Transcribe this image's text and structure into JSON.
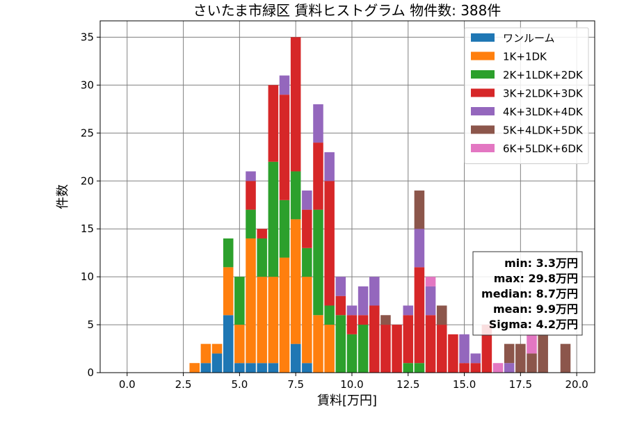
{
  "chart_data": {
    "type": "bar",
    "stacked": true,
    "title": "さいたま市緑区 賃料ヒストグラム  物件数: 388件",
    "xlabel": "賃料[万円]",
    "ylabel": "件数",
    "xlim": [
      -1.2,
      20.8
    ],
    "ylim": [
      0,
      36.7
    ],
    "bin_width": 0.5,
    "grid": true,
    "legend_position": "top-right",
    "x_ticks": [
      "0.0",
      "2.5",
      "5.0",
      "7.5",
      "10.0",
      "12.5",
      "15.0",
      "17.5",
      "20.0"
    ],
    "y_ticks": [
      "0",
      "5",
      "10",
      "15",
      "20",
      "25",
      "30",
      "35"
    ],
    "bins_x": [
      3.0,
      3.5,
      4.0,
      4.5,
      5.0,
      5.5,
      6.0,
      6.5,
      7.0,
      7.5,
      8.0,
      8.5,
      9.0,
      9.5,
      10.0,
      10.5,
      11.0,
      11.5,
      12.0,
      12.5,
      13.0,
      13.5,
      14.0,
      14.5,
      15.0,
      15.5,
      16.0,
      16.5,
      17.0,
      17.5,
      18.0,
      18.5,
      19.0,
      19.5
    ],
    "series": [
      {
        "name": "ワンルーム",
        "color": "#1f77b4",
        "values": [
          0,
          1,
          2,
          6,
          1,
          1,
          1,
          1,
          0,
          3,
          1,
          0,
          0,
          0,
          0,
          0,
          0,
          0,
          0,
          0,
          0,
          0,
          0,
          0,
          0,
          0,
          0,
          0,
          0,
          0,
          0,
          0,
          0,
          0
        ]
      },
      {
        "name": "1K+1DK",
        "color": "#ff7f0e",
        "values": [
          1,
          2,
          1,
          5,
          4,
          13,
          9,
          9,
          12,
          13,
          9,
          6,
          5,
          0,
          0,
          0,
          0,
          0,
          0,
          0,
          0,
          0,
          0,
          0,
          0,
          0,
          0,
          0,
          0,
          0,
          0,
          0,
          0,
          0
        ]
      },
      {
        "name": "2K+1LDK+2DK",
        "color": "#2ca02c",
        "values": [
          0,
          0,
          0,
          3,
          5,
          3,
          4,
          12,
          6,
          5,
          3,
          11,
          2,
          6,
          4,
          5,
          0,
          0,
          0,
          1,
          1,
          0,
          0,
          0,
          0,
          0,
          0,
          0,
          0,
          0,
          0,
          0,
          0,
          0
        ]
      },
      {
        "name": "3K+2LDK+3DK",
        "color": "#d62728",
        "values": [
          0,
          0,
          0,
          0,
          0,
          3,
          1,
          8,
          11,
          14,
          4,
          7,
          13,
          2,
          2,
          1,
          7,
          5,
          5,
          5,
          10,
          6,
          5,
          4,
          1,
          1,
          5,
          0,
          0,
          0,
          0,
          0,
          0,
          0
        ]
      },
      {
        "name": "4K+3LDK+4DK",
        "color": "#9467bd",
        "values": [
          0,
          0,
          0,
          0,
          0,
          1,
          0,
          0,
          2,
          0,
          2,
          4,
          3,
          2,
          1,
          3,
          3,
          0,
          0,
          1,
          4,
          3,
          0,
          0,
          3,
          1,
          0,
          0,
          1,
          0,
          0,
          0,
          0,
          0
        ]
      },
      {
        "name": "5K+4LDK+5DK",
        "color": "#8c564b",
        "values": [
          0,
          0,
          0,
          0,
          0,
          0,
          0,
          0,
          0,
          0,
          0,
          0,
          0,
          0,
          0,
          0,
          0,
          1,
          0,
          0,
          4,
          0,
          2,
          0,
          0,
          0,
          0,
          0,
          2,
          3,
          2,
          4,
          0,
          3
        ]
      },
      {
        "name": "6K+5LDK+6DK",
        "color": "#e377c2",
        "values": [
          0,
          0,
          0,
          0,
          0,
          0,
          0,
          0,
          0,
          0,
          0,
          0,
          0,
          0,
          0,
          0,
          0,
          0,
          0,
          0,
          0,
          1,
          0,
          0,
          0,
          0,
          0,
          1,
          0,
          0,
          2,
          0,
          0,
          0
        ]
      }
    ],
    "annotations": [
      "min: 3.3万円",
      "max: 29.8万円",
      "median: 8.7万円",
      "mean: 9.9万円",
      "Sigma: 4.2万円"
    ]
  }
}
